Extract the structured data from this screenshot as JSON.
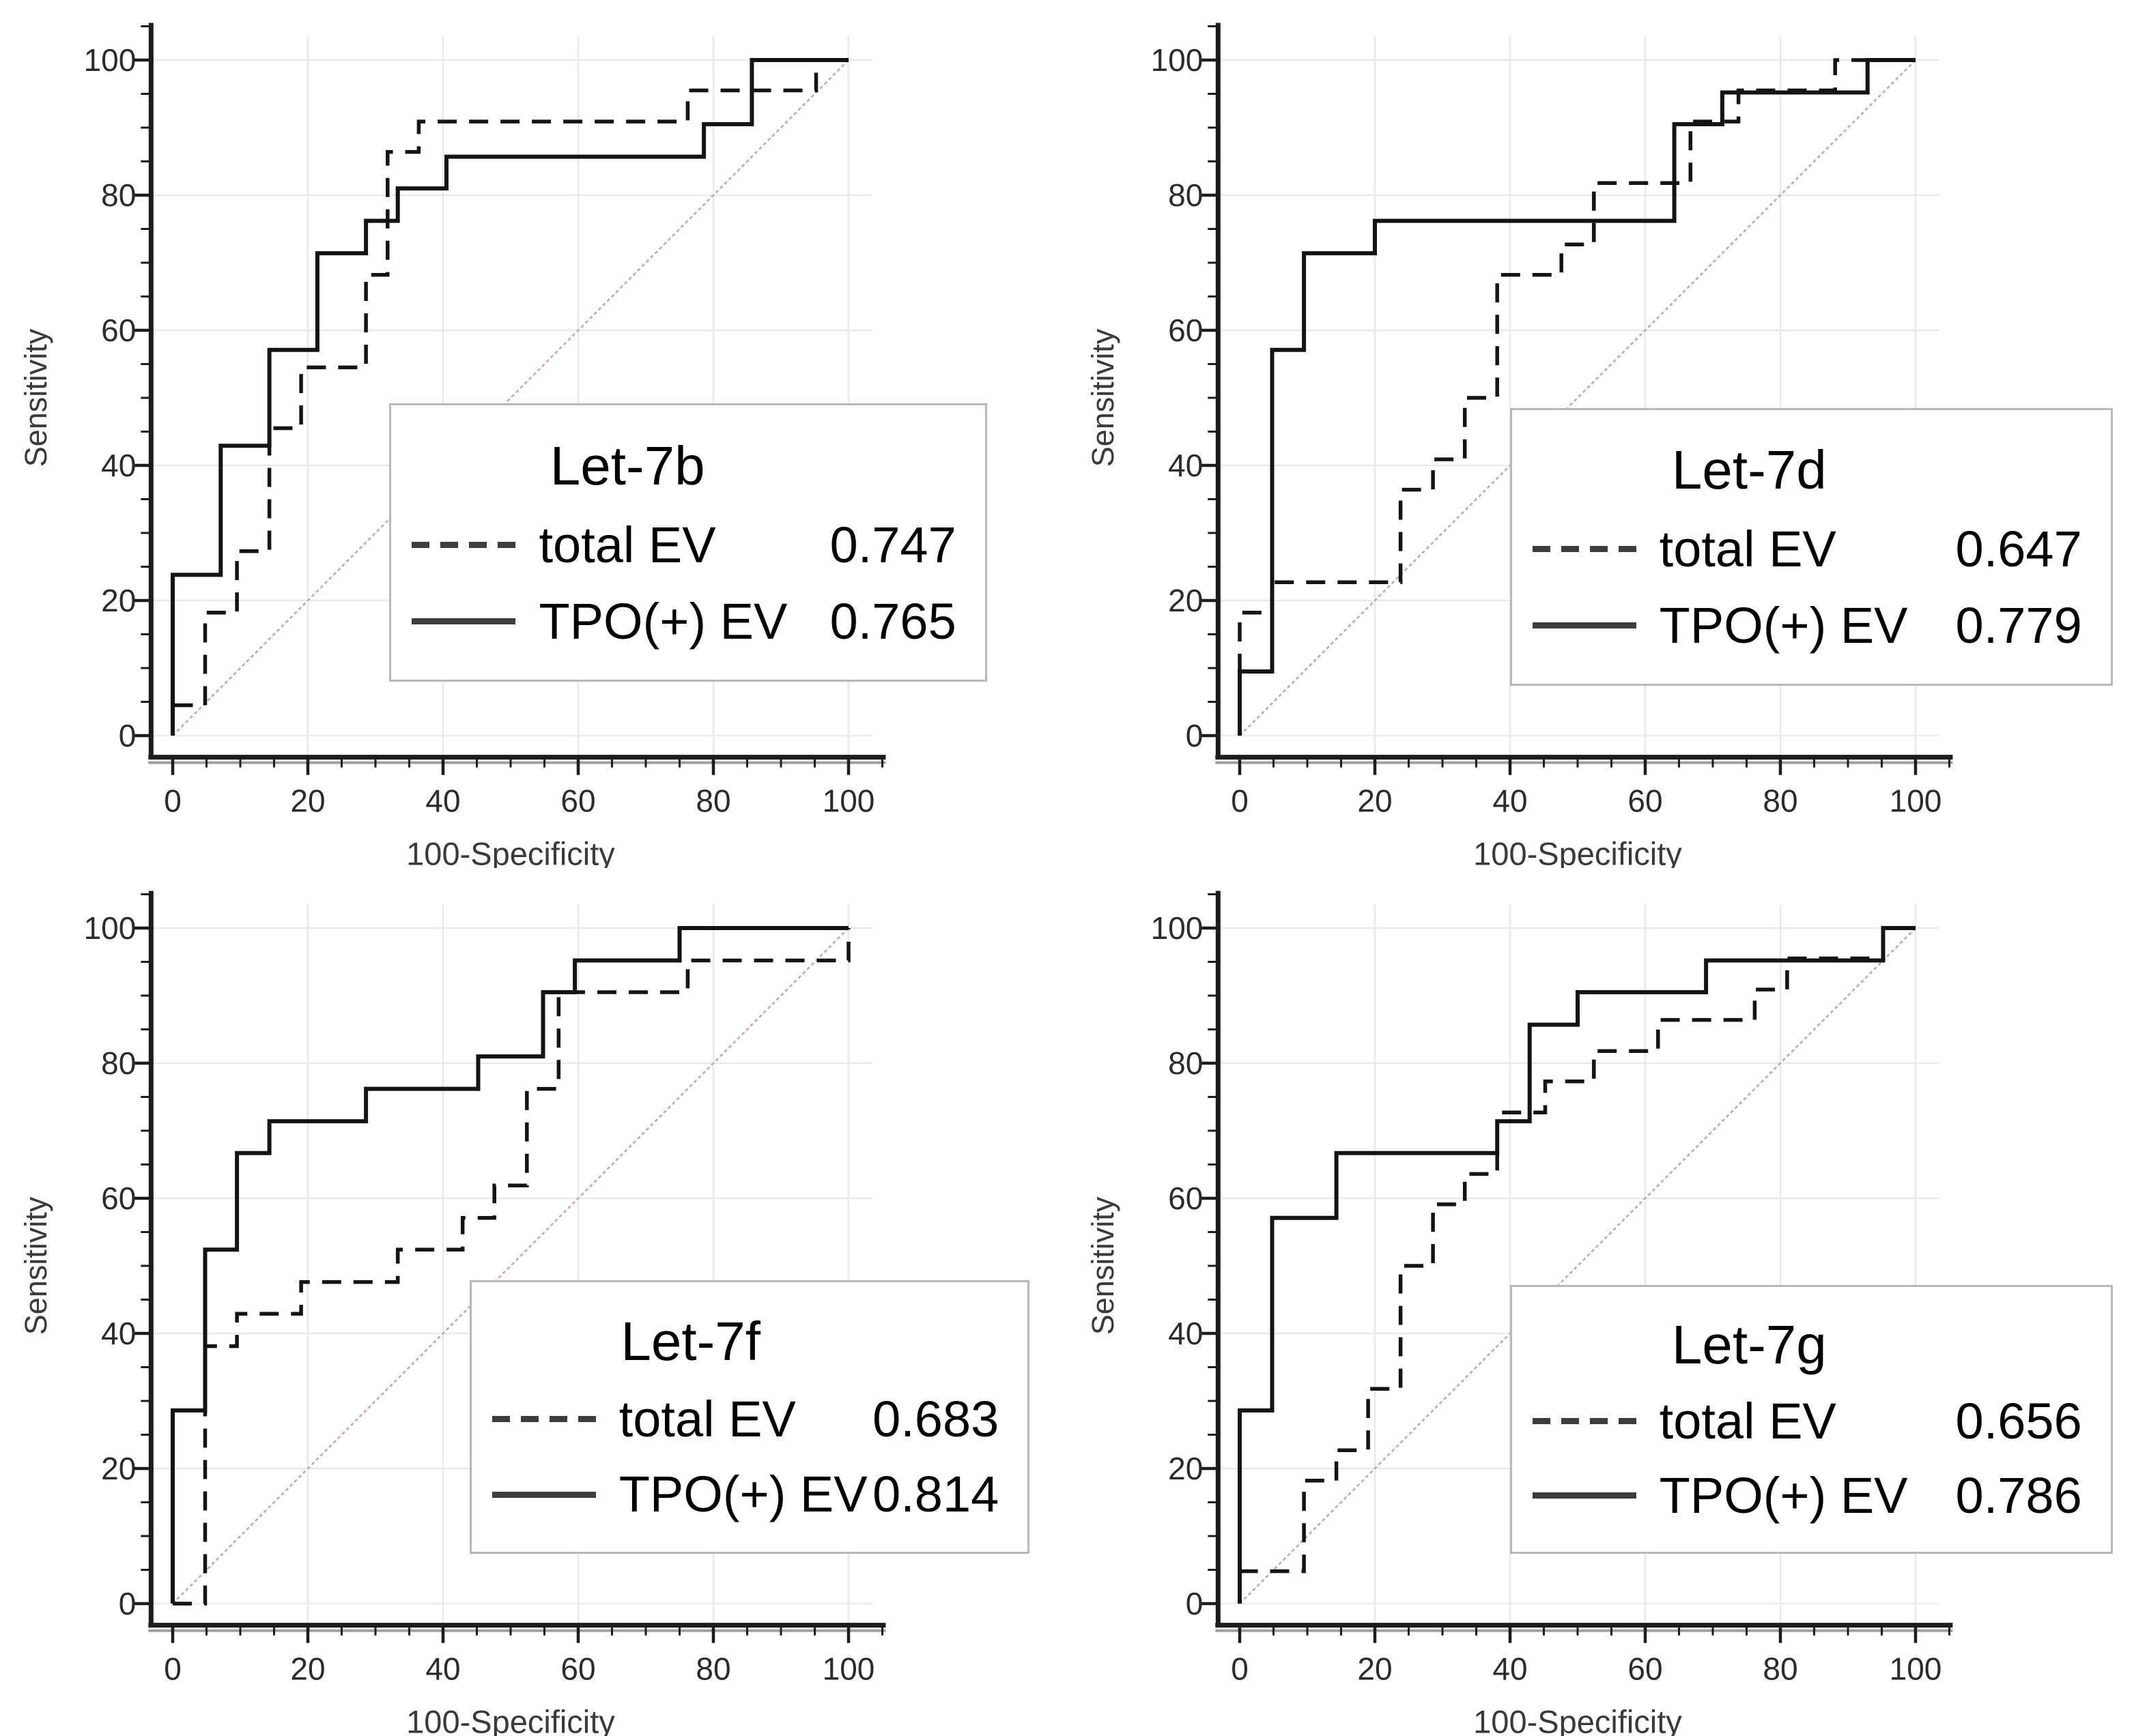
{
  "colors": {
    "curve": "#141414",
    "grid": "#e9e9e9",
    "grid_zero": "#efecec",
    "axis": "#1c1c1c",
    "axis_shadow": "#a0a0a0",
    "diagonal": "#c9a6ab",
    "tick_label": "#2b2b2b",
    "axis_title": "#3a3a3a",
    "legend_border": "#b8b8b8"
  },
  "chart_data": [
    {
      "type": "line",
      "subtype": "roc-step",
      "title": "Let-7b",
      "xlabel": "100-Specificity",
      "ylabel": "Sensitivity",
      "xlim": [
        0,
        105
      ],
      "ylim": [
        0,
        105
      ],
      "x_ticks": [
        0,
        20,
        40,
        60,
        80,
        100
      ],
      "y_ticks": [
        0,
        20,
        40,
        60,
        80,
        100
      ],
      "minor_tick_step": 5,
      "grid": true,
      "diagonal_reference": true,
      "legend": {
        "title": "Let-7b",
        "position": "inside-lower-right",
        "entries": [
          {
            "label": "total EV",
            "auc": "0.747",
            "line_style": "dashed"
          },
          {
            "label": "TPO(+) EV",
            "auc": "0.765",
            "line_style": "solid"
          }
        ]
      },
      "series": [
        {
          "name": "total EV",
          "line_style": "dashed",
          "points": [
            [
              0,
              0
            ],
            [
              0,
              4.5
            ],
            [
              4.8,
              4.5
            ],
            [
              4.8,
              18.2
            ],
            [
              9.5,
              18.2
            ],
            [
              9.5,
              27.3
            ],
            [
              14.3,
              27.3
            ],
            [
              14.3,
              45.5
            ],
            [
              19,
              45.5
            ],
            [
              19,
              54.5
            ],
            [
              28.6,
              54.5
            ],
            [
              28.6,
              68.2
            ],
            [
              31.8,
              68.2
            ],
            [
              31.8,
              86.4
            ],
            [
              36.4,
              86.4
            ],
            [
              36.4,
              90.9
            ],
            [
              76.2,
              90.9
            ],
            [
              76.2,
              95.5
            ],
            [
              95.2,
              95.5
            ],
            [
              95.2,
              100
            ],
            [
              100,
              100
            ]
          ]
        },
        {
          "name": "TPO(+) EV",
          "line_style": "solid",
          "points": [
            [
              0,
              0
            ],
            [
              0,
              23.8
            ],
            [
              7.1,
              23.8
            ],
            [
              7.1,
              42.9
            ],
            [
              14.3,
              42.9
            ],
            [
              14.3,
              57.1
            ],
            [
              21.4,
              57.1
            ],
            [
              21.4,
              71.4
            ],
            [
              28.6,
              71.4
            ],
            [
              28.6,
              76.2
            ],
            [
              33.3,
              76.2
            ],
            [
              33.3,
              81
            ],
            [
              40.5,
              81
            ],
            [
              40.5,
              85.7
            ],
            [
              78.6,
              85.7
            ],
            [
              78.6,
              90.5
            ],
            [
              85.7,
              90.5
            ],
            [
              85.7,
              100
            ],
            [
              100,
              100
            ]
          ]
        }
      ]
    },
    {
      "type": "line",
      "subtype": "roc-step",
      "title": "Let-7d",
      "xlabel": "100-Specificity",
      "ylabel": "Sensitivity",
      "xlim": [
        0,
        105
      ],
      "ylim": [
        0,
        105
      ],
      "x_ticks": [
        0,
        20,
        40,
        60,
        80,
        100
      ],
      "y_ticks": [
        0,
        20,
        40,
        60,
        80,
        100
      ],
      "minor_tick_step": 5,
      "grid": true,
      "diagonal_reference": true,
      "legend": {
        "title": "Let-7d",
        "position": "inside-lower-right",
        "entries": [
          {
            "label": "total EV",
            "auc": "0.647",
            "line_style": "dashed"
          },
          {
            "label": "TPO(+) EV",
            "auc": "0.779",
            "line_style": "solid"
          }
        ]
      },
      "series": [
        {
          "name": "total EV",
          "line_style": "dashed",
          "points": [
            [
              0,
              0
            ],
            [
              0,
              18.2
            ],
            [
              4.8,
              18.2
            ],
            [
              4.8,
              22.7
            ],
            [
              23.8,
              22.7
            ],
            [
              23.8,
              36.4
            ],
            [
              28.6,
              36.4
            ],
            [
              28.6,
              40.9
            ],
            [
              33.3,
              40.9
            ],
            [
              33.3,
              50
            ],
            [
              38.1,
              50
            ],
            [
              38.1,
              68.2
            ],
            [
              47.6,
              68.2
            ],
            [
              47.6,
              72.7
            ],
            [
              52.4,
              72.7
            ],
            [
              52.4,
              81.8
            ],
            [
              66.7,
              81.8
            ],
            [
              66.7,
              90.9
            ],
            [
              73.8,
              90.9
            ],
            [
              73.8,
              95.5
            ],
            [
              88.1,
              95.5
            ],
            [
              88.1,
              100
            ],
            [
              100,
              100
            ]
          ]
        },
        {
          "name": "TPO(+) EV",
          "line_style": "solid",
          "points": [
            [
              0,
              0
            ],
            [
              0,
              9.5
            ],
            [
              4.8,
              9.5
            ],
            [
              4.8,
              57.1
            ],
            [
              9.5,
              57.1
            ],
            [
              9.5,
              71.4
            ],
            [
              20,
              71.4
            ],
            [
              20,
              76.2
            ],
            [
              64.3,
              76.2
            ],
            [
              64.3,
              90.5
            ],
            [
              71.4,
              90.5
            ],
            [
              71.4,
              95.2
            ],
            [
              92.9,
              95.2
            ],
            [
              92.9,
              100
            ],
            [
              100,
              100
            ]
          ]
        }
      ]
    },
    {
      "type": "line",
      "subtype": "roc-step",
      "title": "Let-7f",
      "xlabel": "100-Specificity",
      "ylabel": "Sensitivity",
      "xlim": [
        0,
        105
      ],
      "ylim": [
        0,
        105
      ],
      "x_ticks": [
        0,
        20,
        40,
        60,
        80,
        100
      ],
      "y_ticks": [
        0,
        20,
        40,
        60,
        80,
        100
      ],
      "minor_tick_step": 5,
      "grid": true,
      "diagonal_reference": true,
      "legend": {
        "title": "Let-7f",
        "position": "inside-lower-right",
        "entries": [
          {
            "label": "total EV",
            "auc": "0.683",
            "line_style": "dashed"
          },
          {
            "label": "TPO(+) EV",
            "auc": "0.814",
            "line_style": "solid"
          }
        ]
      },
      "series": [
        {
          "name": "total EV",
          "line_style": "dashed",
          "points": [
            [
              0,
              0
            ],
            [
              4.8,
              0
            ],
            [
              4.8,
              38.1
            ],
            [
              9.5,
              38.1
            ],
            [
              9.5,
              42.9
            ],
            [
              19,
              42.9
            ],
            [
              19,
              47.6
            ],
            [
              33.3,
              47.6
            ],
            [
              33.3,
              52.4
            ],
            [
              42.9,
              52.4
            ],
            [
              42.9,
              57.1
            ],
            [
              47.6,
              57.1
            ],
            [
              47.6,
              61.9
            ],
            [
              52.4,
              61.9
            ],
            [
              52.4,
              76.2
            ],
            [
              57.1,
              76.2
            ],
            [
              57.1,
              90.5
            ],
            [
              76.2,
              90.5
            ],
            [
              76.2,
              95.2
            ],
            [
              100,
              95.2
            ],
            [
              100,
              100
            ]
          ]
        },
        {
          "name": "TPO(+) EV",
          "line_style": "solid",
          "points": [
            [
              0,
              0
            ],
            [
              0,
              28.6
            ],
            [
              4.8,
              28.6
            ],
            [
              4.8,
              52.4
            ],
            [
              9.5,
              52.4
            ],
            [
              9.5,
              66.7
            ],
            [
              14.3,
              66.7
            ],
            [
              14.3,
              71.4
            ],
            [
              28.6,
              71.4
            ],
            [
              28.6,
              76.2
            ],
            [
              45.2,
              76.2
            ],
            [
              45.2,
              81
            ],
            [
              54.8,
              81
            ],
            [
              54.8,
              90.5
            ],
            [
              59.5,
              90.5
            ],
            [
              59.5,
              95.2
            ],
            [
              75,
              95.2
            ],
            [
              75,
              100
            ],
            [
              100,
              100
            ]
          ]
        }
      ]
    },
    {
      "type": "line",
      "subtype": "roc-step",
      "title": "Let-7g",
      "xlabel": "100-Specificity",
      "ylabel": "Sensitivity",
      "xlim": [
        0,
        105
      ],
      "ylim": [
        0,
        105
      ],
      "x_ticks": [
        0,
        20,
        40,
        60,
        80,
        100
      ],
      "y_ticks": [
        0,
        20,
        40,
        60,
        80,
        100
      ],
      "minor_tick_step": 5,
      "grid": true,
      "diagonal_reference": true,
      "legend": {
        "title": "Let-7g",
        "position": "inside-lower-right",
        "entries": [
          {
            "label": "total EV",
            "auc": "0.656",
            "line_style": "dashed"
          },
          {
            "label": "TPO(+) EV",
            "auc": "0.786",
            "line_style": "solid"
          }
        ]
      },
      "series": [
        {
          "name": "total EV",
          "line_style": "dashed",
          "points": [
            [
              0,
              0
            ],
            [
              0,
              4.8
            ],
            [
              9.5,
              4.8
            ],
            [
              9.5,
              18.2
            ],
            [
              14.3,
              18.2
            ],
            [
              14.3,
              22.7
            ],
            [
              19,
              22.7
            ],
            [
              19,
              31.8
            ],
            [
              23.8,
              31.8
            ],
            [
              23.8,
              50
            ],
            [
              28.6,
              50
            ],
            [
              28.6,
              59.1
            ],
            [
              33.3,
              59.1
            ],
            [
              33.3,
              63.6
            ],
            [
              38.1,
              63.6
            ],
            [
              38.1,
              72.7
            ],
            [
              45.2,
              72.7
            ],
            [
              45.2,
              77.3
            ],
            [
              52.4,
              77.3
            ],
            [
              52.4,
              81.8
            ],
            [
              61.9,
              81.8
            ],
            [
              61.9,
              86.4
            ],
            [
              76.2,
              86.4
            ],
            [
              76.2,
              90.9
            ],
            [
              81,
              90.9
            ],
            [
              81,
              95.5
            ],
            [
              95.2,
              95.5
            ],
            [
              95.2,
              100
            ],
            [
              100,
              100
            ]
          ]
        },
        {
          "name": "TPO(+) EV",
          "line_style": "solid",
          "points": [
            [
              0,
              0
            ],
            [
              0,
              28.6
            ],
            [
              4.8,
              28.6
            ],
            [
              4.8,
              57.1
            ],
            [
              14.3,
              57.1
            ],
            [
              14.3,
              66.7
            ],
            [
              38.1,
              66.7
            ],
            [
              38.1,
              71.4
            ],
            [
              42.9,
              71.4
            ],
            [
              42.9,
              85.7
            ],
            [
              50,
              85.7
            ],
            [
              50,
              90.5
            ],
            [
              69,
              90.5
            ],
            [
              69,
              95.2
            ],
            [
              95.2,
              95.2
            ],
            [
              95.2,
              100
            ],
            [
              100,
              100
            ]
          ]
        }
      ]
    }
  ]
}
